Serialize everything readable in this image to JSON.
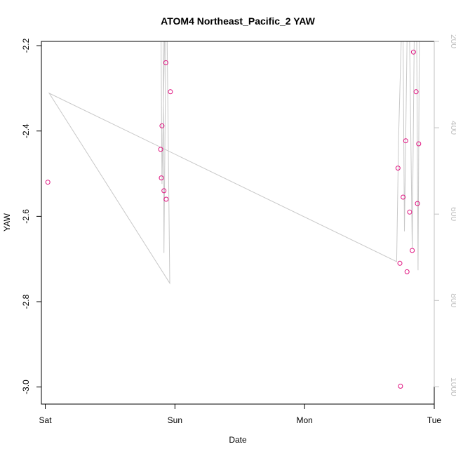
{
  "chart_data": {
    "type": "scatter",
    "title": "ATOM4 Northeast_Pacific_2 YAW",
    "xlabel": "Date",
    "ylabel": "YAW",
    "x_ticks": [
      "Sat",
      "Sun",
      "Mon",
      "Tue"
    ],
    "x_range": [
      -0.03,
      3.0
    ],
    "ylim": [
      -3.04,
      -2.19
    ],
    "y_ticks": [
      -3.0,
      -2.8,
      -2.6,
      -2.4,
      -2.2
    ],
    "y_tick_labels": [
      "-3.0",
      "-2.8",
      "-2.6",
      "-2.4",
      "-2.2"
    ],
    "y2lim": [
      1040,
      200
    ],
    "y2_ticks": [
      200,
      400,
      600,
      800,
      1000
    ],
    "y2_tick_labels": [
      "200",
      "400",
      "600",
      "800",
      "1000"
    ],
    "grid": false,
    "points": [
      {
        "x": 0.02,
        "y": -2.52
      },
      {
        "x": 0.89,
        "y": -2.443
      },
      {
        "x": 0.895,
        "y": -2.51
      },
      {
        "x": 0.9,
        "y": -2.388
      },
      {
        "x": 0.915,
        "y": -2.54
      },
      {
        "x": 0.93,
        "y": -2.24
      },
      {
        "x": 0.932,
        "y": -2.56
      },
      {
        "x": 0.965,
        "y": -2.308
      },
      {
        "x": 2.72,
        "y": -2.487
      },
      {
        "x": 2.735,
        "y": -2.71
      },
      {
        "x": 2.74,
        "y": -2.998
      },
      {
        "x": 2.76,
        "y": -2.555
      },
      {
        "x": 2.78,
        "y": -2.423
      },
      {
        "x": 2.79,
        "y": -2.73
      },
      {
        "x": 2.81,
        "y": -2.59
      },
      {
        "x": 2.83,
        "y": -2.68
      },
      {
        "x": 2.84,
        "y": -2.215
      },
      {
        "x": 2.86,
        "y": -2.308
      },
      {
        "x": 2.87,
        "y": -2.57
      },
      {
        "x": 2.88,
        "y": -2.43
      }
    ],
    "line": [
      {
        "x": 0.92,
        "y2": 200
      },
      {
        "x": 0.9,
        "y2": 530
      },
      {
        "x": 0.893,
        "y2": 200
      },
      {
        "x": 0.91,
        "y2": 200
      },
      {
        "x": 0.915,
        "y2": 690
      },
      {
        "x": 0.93,
        "y2": 200
      },
      {
        "x": 0.94,
        "y2": 200
      },
      {
        "x": 0.96,
        "y2": 760
      },
      {
        "x": 0.03,
        "y2": 320
      },
      {
        "x": 2.71,
        "y2": 710
      },
      {
        "x": 2.725,
        "y2": 420
      },
      {
        "x": 2.745,
        "y2": 200
      },
      {
        "x": 2.76,
        "y2": 200
      },
      {
        "x": 2.77,
        "y2": 640
      },
      {
        "x": 2.79,
        "y2": 200
      },
      {
        "x": 2.81,
        "y2": 200
      },
      {
        "x": 2.83,
        "y2": 680
      },
      {
        "x": 2.845,
        "y2": 200
      },
      {
        "x": 2.865,
        "y2": 200
      },
      {
        "x": 2.875,
        "y2": 730
      },
      {
        "x": 2.885,
        "y2": 200
      }
    ],
    "point_color": "#e0117f",
    "line_color": "#c8c8c8",
    "right_axis_color": "#c0c0c0"
  }
}
